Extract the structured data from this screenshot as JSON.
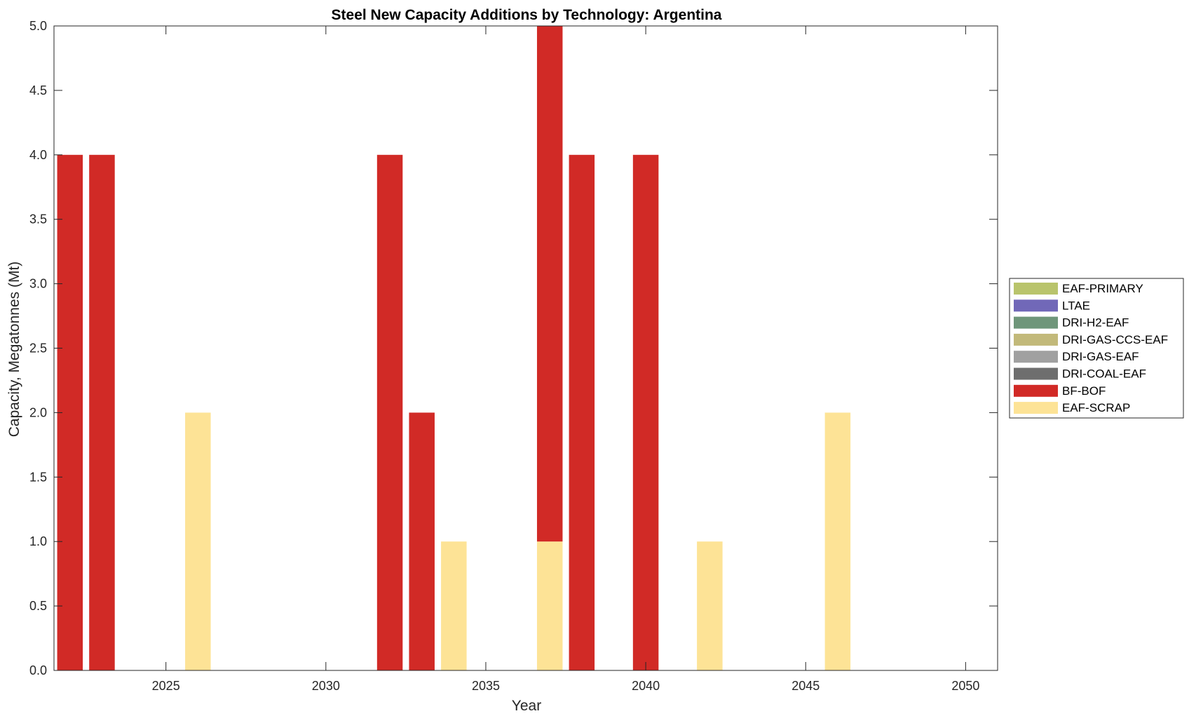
{
  "chart_data": {
    "type": "bar",
    "stacked": true,
    "title": "Steel New Capacity Additions by Technology: Argentina",
    "xlabel": "Year",
    "ylabel": "Capacity, Megatonnes (Mt)",
    "xlim": [
      2021.5,
      2051
    ],
    "ylim": [
      0,
      5
    ],
    "x_ticks": [
      2025,
      2030,
      2035,
      2040,
      2045,
      2050
    ],
    "y_ticks": [
      "0.0",
      "0.5",
      "1.0",
      "1.5",
      "2.0",
      "2.5",
      "3.0",
      "3.5",
      "4.0",
      "4.5",
      "5.0"
    ],
    "grid": false,
    "legend_position": "right",
    "x": [
      2022,
      2023,
      2024,
      2025,
      2026,
      2027,
      2028,
      2029,
      2030,
      2031,
      2032,
      2033,
      2034,
      2035,
      2036,
      2037,
      2038,
      2039,
      2040,
      2041,
      2042,
      2043,
      2044,
      2045,
      2046,
      2047,
      2048,
      2049,
      2050
    ],
    "series": [
      {
        "name": "EAF-SCRAP",
        "color": "#FDE396",
        "values": [
          0,
          0,
          0,
          0,
          2,
          0,
          0,
          0,
          0,
          0,
          0,
          0,
          1,
          0,
          0,
          1,
          0,
          0,
          0,
          0,
          1,
          0,
          0,
          0,
          2,
          0,
          0,
          0,
          0
        ]
      },
      {
        "name": "BF-BOF",
        "color": "#D12A26",
        "values": [
          4,
          4,
          0,
          0,
          0,
          0,
          0,
          0,
          0,
          0,
          4,
          2,
          0,
          0,
          0,
          4,
          4,
          0,
          4,
          0,
          0,
          0,
          0,
          0,
          0,
          0,
          0,
          0,
          0
        ]
      },
      {
        "name": "DRI-COAL-EAF",
        "color": "#6E6E6E",
        "values": [
          0,
          0,
          0,
          0,
          0,
          0,
          0,
          0,
          0,
          0,
          0,
          0,
          0,
          0,
          0,
          0,
          0,
          0,
          0,
          0,
          0,
          0,
          0,
          0,
          0,
          0,
          0,
          0,
          0
        ]
      },
      {
        "name": "DRI-GAS-EAF",
        "color": "#A0A0A0",
        "values": [
          0,
          0,
          0,
          0,
          0,
          0,
          0,
          0,
          0,
          0,
          0,
          0,
          0,
          0,
          0,
          0,
          0,
          0,
          0,
          0,
          0,
          0,
          0,
          0,
          0,
          0,
          0,
          0,
          0
        ]
      },
      {
        "name": "DRI-GAS-CCS-EAF",
        "color": "#C2B97A",
        "values": [
          0,
          0,
          0,
          0,
          0,
          0,
          0,
          0,
          0,
          0,
          0,
          0,
          0,
          0,
          0,
          0,
          0,
          0,
          0,
          0,
          0,
          0,
          0,
          0,
          0,
          0,
          0,
          0,
          0
        ]
      },
      {
        "name": "DRI-H2-EAF",
        "color": "#6F967A",
        "values": [
          0,
          0,
          0,
          0,
          0,
          0,
          0,
          0,
          0,
          0,
          0,
          0,
          0,
          0,
          0,
          0,
          0,
          0,
          0,
          0,
          0,
          0,
          0,
          0,
          0,
          0,
          0,
          0,
          0
        ]
      },
      {
        "name": "LTAE",
        "color": "#7168B8",
        "values": [
          0,
          0,
          0,
          0,
          0,
          0,
          0,
          0,
          0,
          0,
          0,
          0,
          0,
          0,
          0,
          0,
          0,
          0,
          0,
          0,
          0,
          0,
          0,
          0,
          0,
          0,
          0,
          0,
          0
        ]
      },
      {
        "name": "EAF-PRIMARY",
        "color": "#B9C46C",
        "values": [
          0,
          0,
          0,
          0,
          0,
          0,
          0,
          0,
          0,
          0,
          0,
          0,
          0,
          0,
          0,
          0,
          0,
          0,
          0,
          0,
          0,
          0,
          0,
          0,
          0,
          0,
          0,
          0,
          0
        ]
      }
    ],
    "legend_order": [
      "EAF-PRIMARY",
      "LTAE",
      "DRI-H2-EAF",
      "DRI-GAS-CCS-EAF",
      "DRI-GAS-EAF",
      "DRI-COAL-EAF",
      "BF-BOF",
      "EAF-SCRAP"
    ]
  }
}
